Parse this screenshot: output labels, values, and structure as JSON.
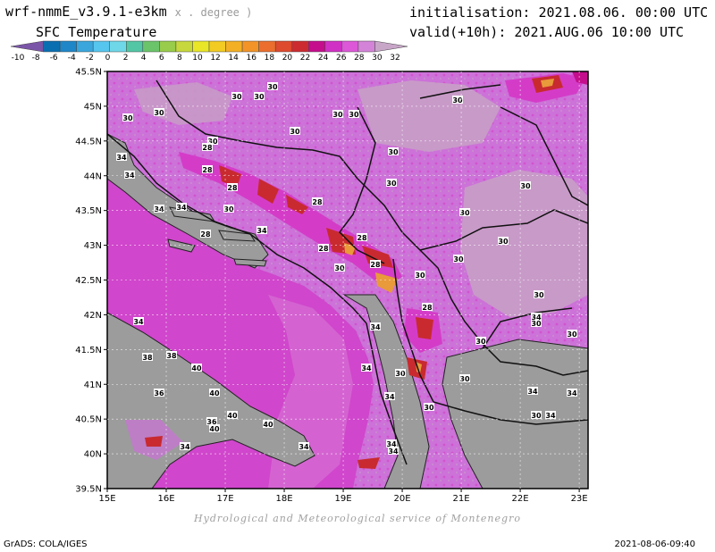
{
  "header": {
    "model": "wrf-nmmE_v3.9.1-e3km",
    "units": "x . degree )",
    "field": "SFC Temperature",
    "init": "initialisation: 2021.08.06. 00:00 UTC",
    "valid": "valid(+10h): 2021.AUG.06 10:00 UTC"
  },
  "legend": {
    "labels": [
      "-10",
      "-8",
      "-6",
      "-4",
      "-2",
      "0",
      "2",
      "4",
      "6",
      "8",
      "10",
      "12",
      "14",
      "16",
      "18",
      "20",
      "22",
      "24",
      "26",
      "28",
      "30",
      "32"
    ],
    "colors": [
      "#7b55a8",
      "#0a6fb0",
      "#1f86c8",
      "#3aa6dc",
      "#56c6ee",
      "#6fd8e8",
      "#52c6a5",
      "#6cc46a",
      "#98cc4a",
      "#c6d83c",
      "#e9e628",
      "#f2cc22",
      "#f3b024",
      "#f39428",
      "#eb6e2e",
      "#de4a2e",
      "#cc2c30",
      "#c40e8c",
      "#d030c4",
      "#dc58d8",
      "#d484d8",
      "#c8a6c8"
    ]
  },
  "map": {
    "lat_ticks": [
      "45.5N",
      "45N",
      "44.5N",
      "44N",
      "43.5N",
      "43N",
      "42.5N",
      "42N",
      "41.5N",
      "41N",
      "40.5N",
      "40N",
      "39.5N"
    ],
    "lon_ticks": [
      "15E",
      "16E",
      "17E",
      "18E",
      "19E",
      "20E",
      "21E",
      "22E",
      "23E"
    ],
    "contour_labels": [
      "30",
      "30",
      "30",
      "30",
      "30",
      "30",
      "30",
      "30",
      "30",
      "30",
      "30",
      "30",
      "30",
      "30",
      "30",
      "30",
      "30",
      "30",
      "30",
      "30",
      "30",
      "30",
      "30",
      "30",
      "30",
      "30",
      "30",
      "28",
      "28",
      "28",
      "28",
      "28",
      "28",
      "28",
      "28",
      "28",
      "34",
      "34",
      "34",
      "34",
      "34",
      "34",
      "34",
      "34",
      "34",
      "34",
      "34",
      "34",
      "34",
      "34",
      "34",
      "34",
      "34",
      "40",
      "40",
      "40",
      "40",
      "40",
      "38",
      "38",
      "36",
      "36"
    ],
    "colors": {
      "land": "#cc72d8",
      "hot": "#d43cc8",
      "cool": "#c89ac8",
      "sea": "#d046cc",
      "shore": "#9c9c9c",
      "warm": "#c82a30",
      "max": "#e99a3a"
    }
  },
  "footer": {
    "credit": "Hydrological and Meteorological service of Montenegro",
    "grads": "GrADS: COLA/IGES",
    "timestamp": "2021-08-06-09:40"
  }
}
